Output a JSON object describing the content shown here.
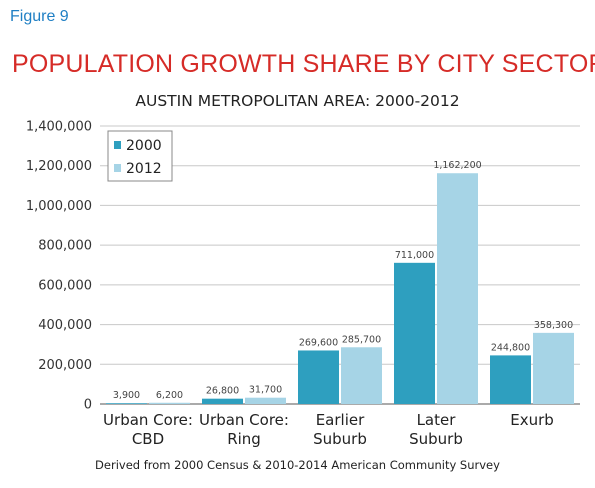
{
  "figure_label": "Figure 9",
  "chart_data": {
    "type": "bar",
    "title": "POPULATION GROWTH SHARE BY CITY SECTOR",
    "subtitle": "AUSTIN METROPOLITAN AREA: 2000-2012",
    "categories": [
      [
        "Urban Core:",
        "CBD"
      ],
      [
        "Urban Core:",
        "Ring"
      ],
      [
        "Earlier",
        "Suburb"
      ],
      [
        "Later",
        "Suburb"
      ],
      [
        "Exurb"
      ]
    ],
    "series": [
      {
        "name": "2000",
        "values": [
          3900,
          26800,
          269600,
          711000,
          244800
        ],
        "labels": [
          "3,900",
          "26,800",
          "269,600",
          "711,000",
          "244,800"
        ],
        "color": "#2e9fbf"
      },
      {
        "name": "2012",
        "values": [
          6200,
          31700,
          285700,
          1162200,
          358300
        ],
        "labels": [
          "6,200",
          "31,700",
          "285,700",
          "1,162,200",
          "358,300"
        ],
        "color": "#a6d4e6"
      }
    ],
    "ylim": [
      0,
      1400000
    ],
    "yticks": [
      0,
      200000,
      400000,
      600000,
      800000,
      1000000,
      1200000,
      1400000
    ],
    "ytick_labels": [
      "0",
      "200,000",
      "400,000",
      "600,000",
      "800,000",
      "1,000,000",
      "1,200,000",
      "1,400,000"
    ],
    "grid": true,
    "legend_position": "top-left"
  },
  "source_note": "Derived from 2000 Census & 2010-2014 American Community Survey"
}
